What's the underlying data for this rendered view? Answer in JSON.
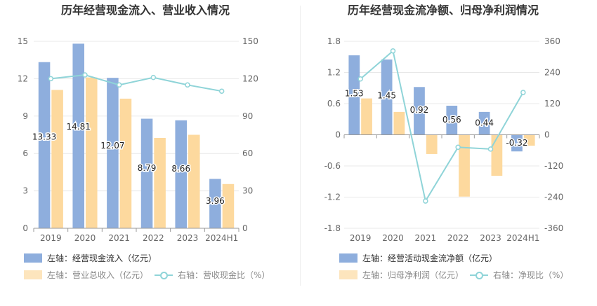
{
  "colors": {
    "bar_primary": "#8eaedd",
    "bar_secondary": "#fdd99e",
    "line": "#8fd4d8",
    "grid": "#e8e8e8",
    "axis": "#cccccc",
    "text": "#333333"
  },
  "chart_data": [
    {
      "type": "bar",
      "title": "历年经营现金流入、营业收入情况",
      "categories": [
        "2019",
        "2020",
        "2021",
        "2022",
        "2023",
        "2024H1"
      ],
      "ylim_left": [
        0,
        15
      ],
      "yticks_left": [
        "0",
        "3",
        "6",
        "9",
        "12",
        "15"
      ],
      "ylim_right": [
        0,
        150
      ],
      "yticks_right": [
        "0",
        "30",
        "60",
        "90",
        "120",
        "150"
      ],
      "grid": true,
      "legend_position": "bottom",
      "series": [
        {
          "name": "左轴：经营现金流入（亿元）",
          "kind": "bar",
          "axis": "left",
          "values": [
            13.33,
            14.81,
            12.07,
            8.79,
            8.66,
            3.96
          ],
          "labels": [
            "13.33",
            "14.81",
            "12.07",
            "8.79",
            "8.66",
            "3.96"
          ]
        },
        {
          "name": "左轴：营业总收入（亿元）",
          "kind": "bar",
          "axis": "left",
          "values": [
            11.1,
            12.1,
            10.4,
            7.25,
            7.5,
            3.55
          ]
        },
        {
          "name": "右轴：营收现金比（%）",
          "kind": "line",
          "axis": "right",
          "values": [
            120,
            123,
            115,
            121,
            115,
            110
          ]
        }
      ]
    },
    {
      "type": "bar",
      "title": "历年经营现金流净额、归母净利润情况",
      "categories": [
        "2019",
        "2020",
        "2021",
        "2022",
        "2023",
        "2024H1"
      ],
      "ylim_left": [
        -1.8,
        1.8
      ],
      "yticks_left": [
        "-1.8",
        "-1.2",
        "-0.6",
        "0",
        "0.6",
        "1.2",
        "1.8"
      ],
      "ylim_right": [
        -360,
        360
      ],
      "yticks_right": [
        "-360",
        "-240",
        "-120",
        "0",
        "120",
        "240",
        "360"
      ],
      "grid": true,
      "legend_position": "bottom",
      "series": [
        {
          "name": "左轴：经营活动现金流净额（亿元）",
          "kind": "bar",
          "axis": "left",
          "values": [
            1.53,
            1.45,
            0.92,
            0.56,
            0.44,
            -0.32
          ],
          "labels": [
            "1.53",
            "1.45",
            "0.92",
            "0.56",
            "0.44",
            "-0.32"
          ]
        },
        {
          "name": "左轴：归母净利润（亿元）",
          "kind": "bar",
          "axis": "left",
          "values": [
            0.7,
            0.44,
            -0.37,
            -1.19,
            -0.79,
            -0.21
          ]
        },
        {
          "name": "右轴：净现比（%）",
          "kind": "line",
          "axis": "right",
          "values": [
            215,
            323,
            -255,
            -48,
            -55,
            163
          ]
        }
      ]
    }
  ]
}
